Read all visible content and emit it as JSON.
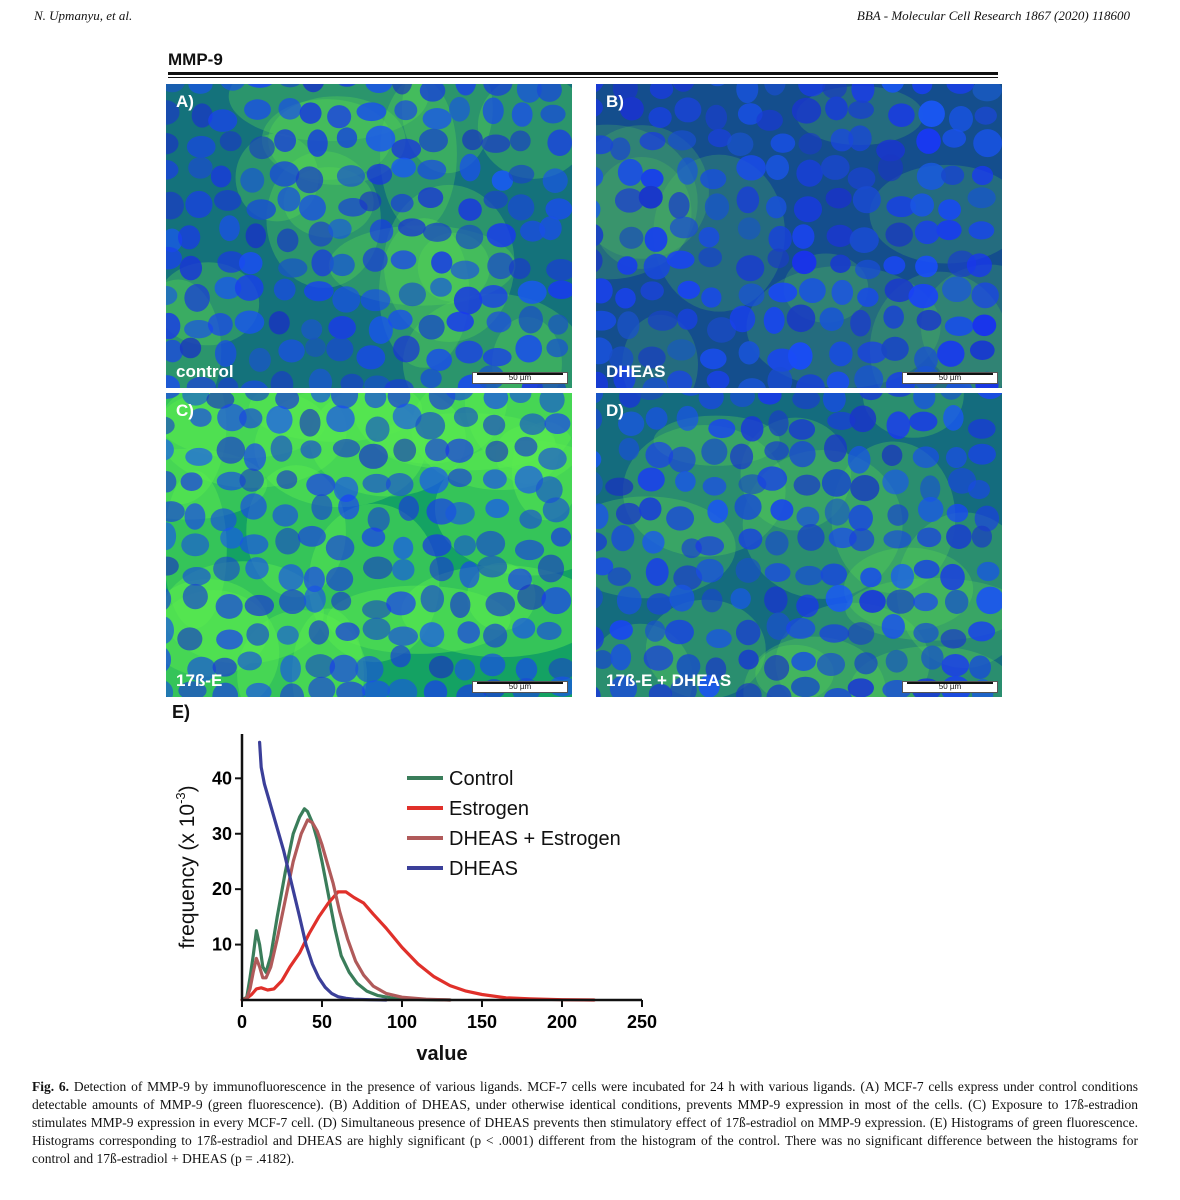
{
  "header": {
    "author": "N. Upmanyu, et al.",
    "journal": "BBA - Molecular Cell Research 1867 (2020) 118600"
  },
  "figure": {
    "title": "MMP-9",
    "panels": [
      {
        "letter": "A)",
        "condition": "control",
        "scale": "50 µm",
        "green": 0.45
      },
      {
        "letter": "B)",
        "condition": "DHEAS",
        "scale": "50 µm",
        "green": 0.15
      },
      {
        "letter": "C)",
        "condition": "17ß-E",
        "scale": "50 µm",
        "green": 0.85
      },
      {
        "letter": "D)",
        "condition": "17ß-E + DHEAS",
        "scale": "50 µm",
        "green": 0.4
      }
    ],
    "histogram_label": "E)"
  },
  "chart_data": {
    "type": "line",
    "xlabel": "value",
    "ylabel": "frequency (x 10",
    "ylabel_sup": "-3",
    "ylabel_close": ")",
    "xlim": [
      0,
      250
    ],
    "ylim": [
      0,
      48
    ],
    "xticks": [
      0,
      50,
      100,
      150,
      200,
      250
    ],
    "yticks": [
      10,
      20,
      30,
      40
    ],
    "grid": false,
    "legend_position": "top-right",
    "series": [
      {
        "name": "Control",
        "color": "#3a7d5a",
        "x": [
          0,
          3,
          5,
          7,
          9,
          11,
          13,
          15,
          18,
          22,
          27,
          32,
          36,
          39,
          41,
          44,
          47,
          50,
          54,
          58,
          62,
          67,
          72,
          78,
          85,
          95,
          110,
          130
        ],
        "y": [
          0,
          0.5,
          4,
          8,
          12.5,
          10,
          6,
          5,
          8,
          15,
          23,
          30,
          33,
          34.5,
          34,
          32,
          29,
          25,
          19,
          13,
          8,
          5,
          3,
          1.6,
          0.8,
          0.3,
          0.1,
          0
        ]
      },
      {
        "name": "Estrogen",
        "color": "#e0302a",
        "x": [
          0,
          3,
          6,
          9,
          12,
          16,
          20,
          25,
          30,
          36,
          42,
          48,
          54,
          60,
          65,
          70,
          76,
          82,
          90,
          100,
          110,
          120,
          130,
          140,
          150,
          165,
          180,
          200,
          220
        ],
        "y": [
          0,
          0.3,
          1,
          2,
          2.2,
          1.8,
          2,
          3.5,
          6,
          8.5,
          12,
          15,
          17.5,
          19.5,
          19.5,
          18.5,
          17.5,
          15.5,
          13,
          9.5,
          6.5,
          4.2,
          2.6,
          1.6,
          1,
          0.4,
          0.2,
          0.05,
          0
        ]
      },
      {
        "name": "DHEAS + Estrogen",
        "color": "#b05a5a",
        "x": [
          0,
          3,
          5,
          7,
          9,
          11,
          13,
          15,
          18,
          22,
          27,
          32,
          37,
          41,
          44,
          47,
          50,
          53,
          57,
          61,
          66,
          71,
          76,
          82,
          90,
          100,
          115,
          130
        ],
        "y": [
          0,
          0.3,
          2,
          5,
          7.5,
          6,
          4,
          4,
          6,
          11,
          18,
          25,
          30,
          32.5,
          32,
          30.5,
          28,
          25,
          21,
          16,
          11,
          7,
          4.5,
          2.5,
          1.2,
          0.5,
          0.15,
          0
        ]
      },
      {
        "name": "DHEAS",
        "color": "#3b3f99",
        "x": [
          11,
          12,
          14,
          17,
          21,
          26,
          31,
          36,
          40,
          44,
          48,
          52,
          56,
          60,
          65,
          70,
          80,
          90
        ],
        "y": [
          46.5,
          42,
          39,
          36,
          32,
          27,
          21,
          15,
          10,
          6.5,
          4,
          2.3,
          1.2,
          0.6,
          0.3,
          0.15,
          0.05,
          0
        ]
      }
    ]
  },
  "caption": {
    "fig_label": "Fig. 6.",
    "text": " Detection of MMP-9 by immunofluorescence in the presence of various ligands. MCF-7 cells were incubated for 24 h with various ligands. (A) MCF-7 cells express under control conditions detectable amounts of MMP-9 (green fluorescence). (B) Addition of DHEAS, under otherwise identical conditions, prevents MMP-9 expression in most of the cells. (C) Exposure to 17ß-estradion stimulates MMP-9 expression in every MCF-7 cell. (D) Simultaneous presence of DHEAS prevents then stimulatory effect of 17ß-estradiol on MMP-9 expression. (E) Histograms of green fluorescence. Histograms corresponding to 17ß-estradiol and DHEAS are highly significant (p < .0001) different from the histogram of the control. There was no significant difference between the histograms for control and 17ß-estradiol + DHEAS (p = .4182)."
  }
}
